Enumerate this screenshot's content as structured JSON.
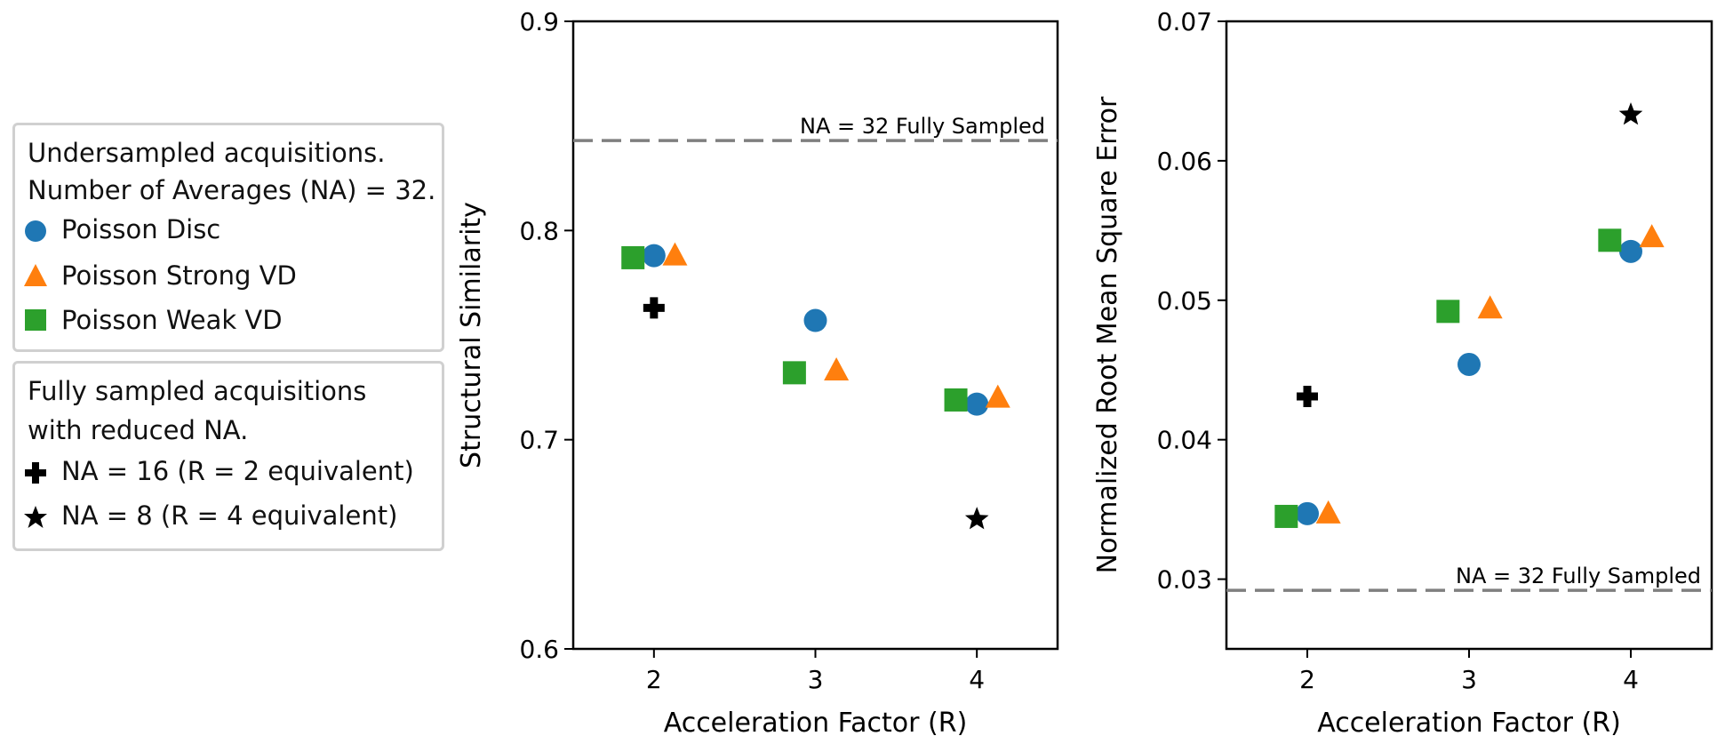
{
  "colors": {
    "poisson_disc": "#1f77b4",
    "poisson_strong_vd": "#ff7f0e",
    "poisson_weak_vd": "#2ca02c",
    "fully_sampled": "#000000",
    "reference_line": "#7f7f7f"
  },
  "legend": {
    "group1": {
      "title_line1": "Undersampled acquisitions.",
      "title_line2": "Number of Averages (NA) = 32.",
      "items": [
        {
          "label": "Poisson Disc",
          "marker": "circle"
        },
        {
          "label": "Poisson Strong VD",
          "marker": "triangle"
        },
        {
          "label": "Poisson Weak VD",
          "marker": "square"
        }
      ]
    },
    "group2": {
      "title_line1": "Fully sampled acquisitions",
      "title_line2": "with reduced NA.",
      "items": [
        {
          "label": "NA = 16 (R = 2 equivalent)",
          "marker": "plus"
        },
        {
          "label": "NA = 8 (R = 4 equivalent)",
          "marker": "star"
        }
      ]
    }
  },
  "chart_data": [
    {
      "type": "scatter",
      "title": "",
      "xlabel": "Acceleration Factor (R)",
      "ylabel": "Structural Similarity",
      "xlim": [
        1.5,
        4.5
      ],
      "ylim": [
        0.6,
        0.9
      ],
      "xticks": [
        2,
        3,
        4
      ],
      "xtick_labels": [
        "2",
        "3",
        "4"
      ],
      "yticks": [
        0.6,
        0.7,
        0.8,
        0.9
      ],
      "ytick_labels": [
        "0.6",
        "0.7",
        "0.8",
        "0.9"
      ],
      "reference": {
        "value": 0.843,
        "label": "NA = 32 Fully Sampled"
      },
      "series": [
        {
          "name": "Poisson Disc",
          "marker": "circle",
          "color": "#1f77b4",
          "points": [
            [
              2.0,
              0.788
            ],
            [
              3.0,
              0.757
            ],
            [
              4.0,
              0.717
            ]
          ]
        },
        {
          "name": "Poisson Strong VD",
          "marker": "triangle",
          "color": "#ff7f0e",
          "points": [
            [
              2.13,
              0.788
            ],
            [
              3.13,
              0.733
            ],
            [
              4.13,
              0.72
            ]
          ]
        },
        {
          "name": "Poisson Weak VD",
          "marker": "square",
          "color": "#2ca02c",
          "points": [
            [
              1.87,
              0.787
            ],
            [
              2.87,
              0.732
            ],
            [
              3.87,
              0.719
            ]
          ]
        },
        {
          "name": "NA = 16 (R = 2 equivalent)",
          "marker": "plus",
          "color": "#000000",
          "points": [
            [
              2.0,
              0.763
            ]
          ]
        },
        {
          "name": "NA = 8 (R = 4 equivalent)",
          "marker": "star",
          "color": "#000000",
          "points": [
            [
              4.0,
              0.662
            ]
          ]
        }
      ]
    },
    {
      "type": "scatter",
      "title": "",
      "xlabel": "Acceleration Factor (R)",
      "ylabel": "Normalized Root Mean Square Error",
      "xlim": [
        1.5,
        4.5
      ],
      "ylim": [
        0.025,
        0.07
      ],
      "xticks": [
        2,
        3,
        4
      ],
      "xtick_labels": [
        "2",
        "3",
        "4"
      ],
      "yticks": [
        0.03,
        0.04,
        0.05,
        0.06,
        0.07
      ],
      "ytick_labels": [
        "0.03",
        "0.04",
        "0.05",
        "0.06",
        "0.07"
      ],
      "reference": {
        "value": 0.0292,
        "label": "NA = 32 Fully Sampled"
      },
      "series": [
        {
          "name": "Poisson Disc",
          "marker": "circle",
          "color": "#1f77b4",
          "points": [
            [
              2.0,
              0.0347
            ],
            [
              3.0,
              0.0454
            ],
            [
              4.0,
              0.0535
            ]
          ]
        },
        {
          "name": "Poisson Strong VD",
          "marker": "triangle",
          "color": "#ff7f0e",
          "points": [
            [
              2.13,
              0.0347
            ],
            [
              3.13,
              0.0494
            ],
            [
              4.13,
              0.0545
            ]
          ]
        },
        {
          "name": "Poisson Weak VD",
          "marker": "square",
          "color": "#2ca02c",
          "points": [
            [
              1.87,
              0.0345
            ],
            [
              2.87,
              0.0492
            ],
            [
              3.87,
              0.0543
            ]
          ]
        },
        {
          "name": "NA = 16 (R = 2 equivalent)",
          "marker": "plus",
          "color": "#000000",
          "points": [
            [
              2.0,
              0.0431
            ]
          ]
        },
        {
          "name": "NA = 8 (R = 4 equivalent)",
          "marker": "star",
          "color": "#000000",
          "points": [
            [
              4.0,
              0.0633
            ]
          ]
        }
      ]
    }
  ]
}
